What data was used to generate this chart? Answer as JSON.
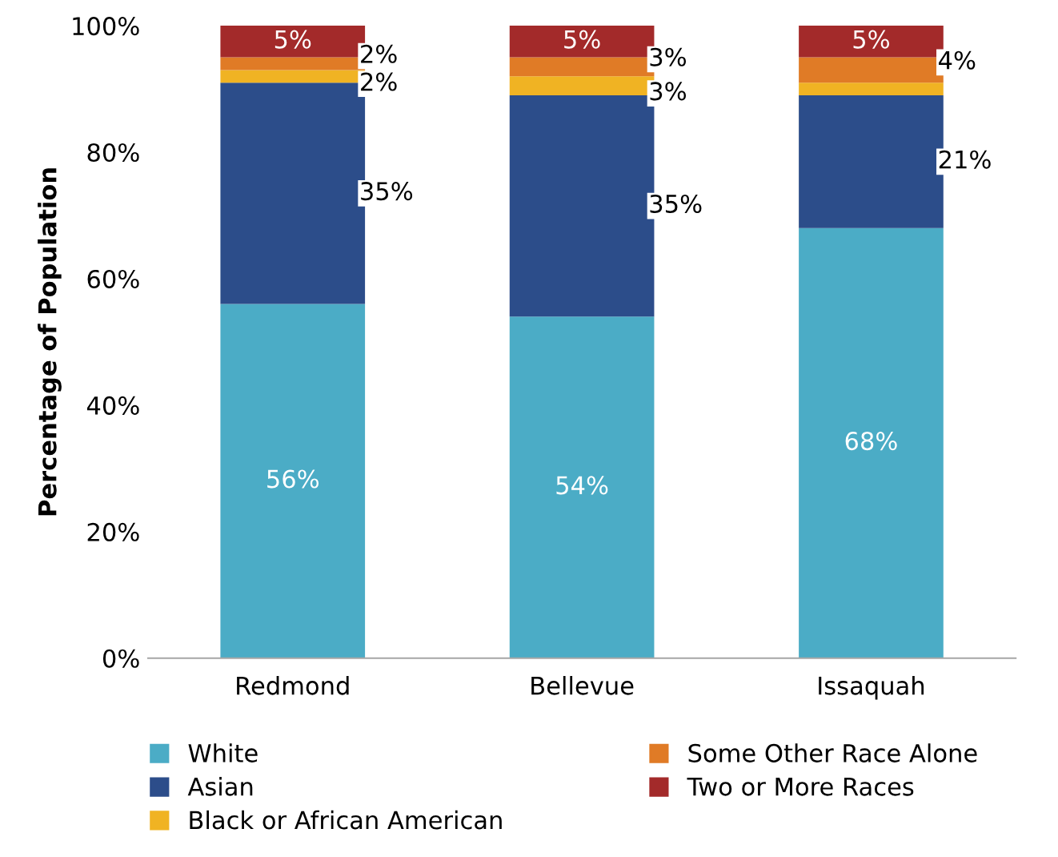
{
  "chart_data": {
    "type": "bar",
    "stacked": true,
    "ylabel": "Percentage of Population",
    "categories": [
      "Redmond",
      "Bellevue",
      "Issaquah"
    ],
    "series": [
      {
        "name": "White",
        "color": "#4bacc6",
        "values": [
          56,
          54,
          68
        ],
        "value_labels": [
          "56%",
          "54%",
          "68%"
        ]
      },
      {
        "name": "Asian",
        "color": "#2c4d8a",
        "values": [
          35,
          35,
          21
        ],
        "value_labels": [
          "35%",
          "35%",
          "21%"
        ]
      },
      {
        "name": "Black or African American",
        "color": "#f0b323",
        "values": [
          2,
          3,
          2
        ],
        "value_labels": [
          "2%",
          "3%",
          null
        ]
      },
      {
        "name": "Some Other Race Alone",
        "color": "#e07b26",
        "values": [
          2,
          3,
          4
        ],
        "value_labels": [
          "2%",
          "3%",
          "4%"
        ]
      },
      {
        "name": "Two or More Races",
        "color": "#a32a2a",
        "values": [
          5,
          5,
          5
        ],
        "value_labels": [
          "5%",
          "5%",
          "5%"
        ]
      }
    ],
    "ylim": [
      0,
      100
    ],
    "yticks": [
      {
        "value": 0,
        "label": "0%"
      },
      {
        "value": 20,
        "label": "20%"
      },
      {
        "value": 40,
        "label": "40%"
      },
      {
        "value": 60,
        "label": "60%"
      },
      {
        "value": 80,
        "label": "80%"
      },
      {
        "value": 100,
        "label": "100%"
      }
    ],
    "grid": false,
    "legend": "bottom"
  }
}
